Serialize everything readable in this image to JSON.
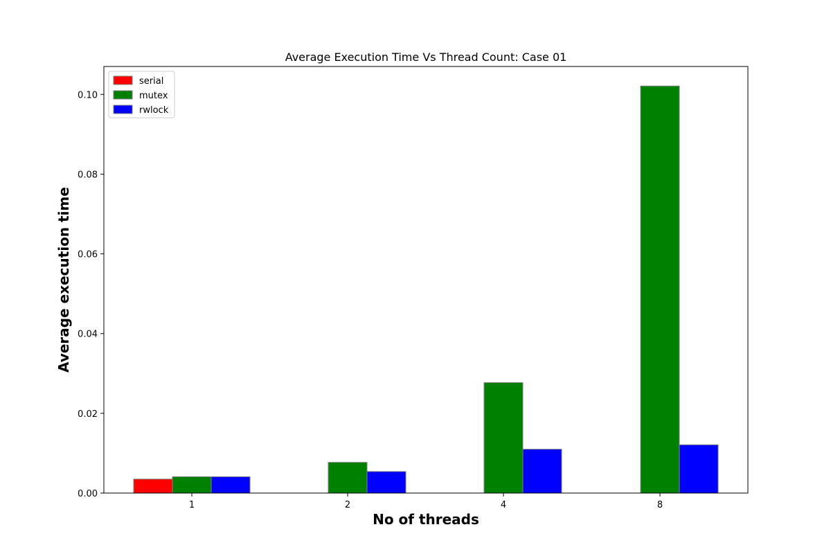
{
  "chart_data": {
    "type": "bar",
    "title": "Average Execution Time Vs Thread Count: Case 01",
    "xlabel": "No of threads",
    "ylabel": "Average execution time",
    "categories": [
      "1",
      "2",
      "4",
      "8"
    ],
    "series": [
      {
        "name": "serial",
        "color": "#ff0000",
        "values": [
          0.0035,
          0.0,
          0.0,
          0.0
        ]
      },
      {
        "name": "mutex",
        "color": "#008000",
        "values": [
          0.0041,
          0.0077,
          0.0277,
          0.1021
        ]
      },
      {
        "name": "rwlock",
        "color": "#0000ff",
        "values": [
          0.0041,
          0.0054,
          0.011,
          0.0121
        ]
      }
    ],
    "ylim": [
      0,
      0.107
    ],
    "yticks": [
      "0.00",
      "0.02",
      "0.04",
      "0.06",
      "0.08",
      "0.10"
    ],
    "grid": false,
    "legend_position": "top-left"
  }
}
